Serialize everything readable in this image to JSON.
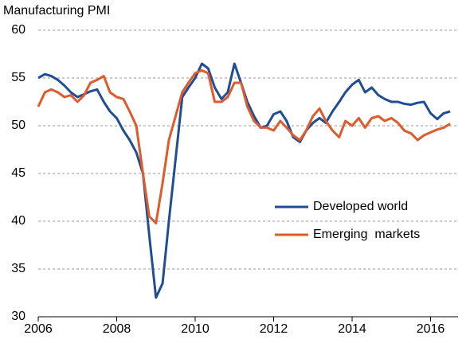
{
  "chart_data": {
    "type": "line",
    "ylabel": "Manufacturing PMI",
    "x": [
      2006,
      2006.17,
      2006.33,
      2006.5,
      2006.67,
      2006.83,
      2007,
      2007.17,
      2007.33,
      2007.5,
      2007.67,
      2007.83,
      2008,
      2008.17,
      2008.33,
      2008.5,
      2008.67,
      2008.83,
      2009,
      2009.17,
      2009.33,
      2009.5,
      2009.67,
      2009.83,
      2010,
      2010.17,
      2010.33,
      2010.5,
      2010.67,
      2010.83,
      2011,
      2011.17,
      2011.33,
      2011.5,
      2011.67,
      2011.83,
      2012,
      2012.17,
      2012.33,
      2012.5,
      2012.67,
      2012.83,
      2013,
      2013.17,
      2013.33,
      2013.5,
      2013.67,
      2013.83,
      2014,
      2014.17,
      2014.33,
      2014.5,
      2014.67,
      2014.83,
      2015,
      2015.17,
      2015.33,
      2015.5,
      2015.67,
      2015.83,
      2016,
      2016.17,
      2016.33,
      2016.5
    ],
    "series": [
      {
        "name": "Developed world",
        "color": "#1f4e96",
        "values": [
          55.0,
          55.4,
          55.2,
          54.8,
          54.2,
          53.5,
          53.0,
          53.3,
          53.6,
          53.8,
          52.5,
          51.5,
          50.8,
          49.5,
          48.5,
          47.2,
          45.0,
          38.5,
          32.0,
          33.5,
          40.0,
          46.5,
          53.0,
          54.0,
          55.0,
          56.5,
          56.0,
          54.0,
          52.8,
          53.5,
          56.5,
          54.5,
          52.5,
          51.0,
          49.8,
          50.0,
          51.2,
          51.5,
          50.5,
          48.8,
          48.3,
          49.5,
          50.3,
          50.8,
          50.3,
          51.5,
          52.5,
          53.5,
          54.3,
          54.8,
          53.5,
          54.0,
          53.2,
          52.8,
          52.5,
          52.5,
          52.3,
          52.2,
          52.4,
          52.5,
          51.3,
          50.7,
          51.3,
          51.5
        ]
      },
      {
        "name": "Emerging  markets",
        "color": "#e05a2b",
        "values": [
          52.0,
          53.5,
          53.8,
          53.5,
          53.0,
          53.2,
          52.5,
          53.2,
          54.5,
          54.8,
          55.2,
          53.5,
          53.0,
          52.8,
          51.5,
          50.0,
          45.0,
          40.5,
          39.8,
          44.0,
          48.5,
          51.0,
          53.5,
          54.5,
          55.5,
          55.8,
          55.5,
          52.5,
          52.5,
          53.0,
          54.5,
          54.5,
          52.0,
          50.5,
          49.8,
          49.8,
          49.5,
          50.5,
          49.8,
          49.0,
          48.5,
          49.5,
          51.0,
          51.8,
          50.5,
          49.5,
          48.8,
          50.5,
          50.0,
          50.8,
          49.8,
          50.8,
          51.0,
          50.5,
          50.8,
          50.3,
          49.5,
          49.2,
          48.5,
          49.0,
          49.3,
          49.6,
          49.8,
          50.2
        ]
      }
    ],
    "xlim": [
      2006,
      2016.7
    ],
    "xticks": [
      2006,
      2008,
      2010,
      2012,
      2014,
      2016
    ],
    "ylim": [
      30,
      60
    ],
    "yticks": [
      30,
      35,
      40,
      45,
      50,
      55,
      60
    ],
    "grid": true,
    "legend": "lower right"
  }
}
